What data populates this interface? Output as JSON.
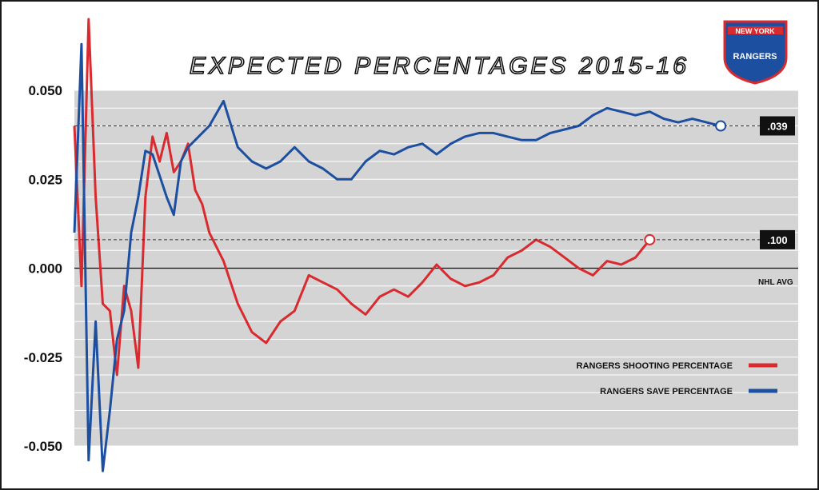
{
  "chart_data": {
    "type": "line",
    "title": "EXPECTED PERCENTAGES 2015-16",
    "xlabel": "",
    "ylabel": "",
    "ylim": [
      -0.05,
      0.05
    ],
    "yticks": [
      "0.050",
      "0.025",
      "0.000",
      "-0.025",
      "-0.050"
    ],
    "grid": true,
    "legend_position": "bottom-right",
    "baseline_label": "NHL AVG",
    "series": [
      {
        "name": "RANGERS SHOOTING PERCENTAGE",
        "color": "#d92b2f",
        "x": [
          1,
          2,
          3,
          4,
          5,
          6,
          7,
          8,
          9,
          10,
          11,
          12,
          13,
          14,
          15,
          16,
          17,
          18,
          19,
          20,
          22,
          24,
          26,
          28,
          30,
          32,
          34,
          36,
          38,
          40,
          42,
          44,
          46,
          48,
          50,
          52,
          54,
          56,
          58,
          60,
          62,
          64,
          66,
          68,
          70,
          72,
          74,
          76,
          78,
          80,
          82
        ],
        "values": [
          0.04,
          -0.005,
          0.07,
          0.02,
          -0.01,
          -0.012,
          -0.03,
          -0.005,
          -0.012,
          -0.028,
          0.02,
          0.037,
          0.03,
          0.038,
          0.027,
          0.03,
          0.035,
          0.022,
          0.018,
          0.01,
          0.002,
          -0.01,
          -0.018,
          -0.021,
          -0.015,
          -0.012,
          -0.002,
          -0.004,
          -0.006,
          -0.01,
          -0.013,
          -0.008,
          -0.006,
          -0.008,
          -0.004,
          0.001,
          -0.003,
          -0.005,
          -0.004,
          -0.002,
          0.003,
          0.005,
          0.008,
          0.006,
          0.003,
          0,
          -0.002,
          0.002,
          0.001,
          0.003,
          0.008
        ],
        "end_label": ".100"
      },
      {
        "name": "RANGERS SAVE PERCENTAGE",
        "color": "#1d4fa0",
        "x": [
          1,
          2,
          3,
          4,
          5,
          6,
          7,
          8,
          9,
          10,
          11,
          12,
          13,
          14,
          15,
          16,
          17,
          18,
          19,
          20,
          22,
          24,
          26,
          28,
          30,
          32,
          34,
          36,
          38,
          40,
          42,
          44,
          46,
          48,
          50,
          52,
          54,
          56,
          58,
          60,
          62,
          64,
          66,
          68,
          70,
          72,
          74,
          76,
          78,
          80,
          82,
          84,
          86,
          88,
          90,
          92
        ],
        "values": [
          0.01,
          0.063,
          -0.054,
          -0.015,
          -0.057,
          -0.04,
          -0.02,
          -0.012,
          0.01,
          0.02,
          0.033,
          0.032,
          0.026,
          0.02,
          0.015,
          0.03,
          0.034,
          0.036,
          0.038,
          0.04,
          0.047,
          0.034,
          0.03,
          0.028,
          0.03,
          0.034,
          0.03,
          0.028,
          0.025,
          0.025,
          0.03,
          0.033,
          0.032,
          0.034,
          0.035,
          0.032,
          0.035,
          0.037,
          0.038,
          0.038,
          0.037,
          0.036,
          0.036,
          0.038,
          0.039,
          0.04,
          0.043,
          0.045,
          0.044,
          0.043,
          0.044,
          0.042,
          0.041,
          0.042,
          0.041,
          0.04
        ],
        "end_label": ".039"
      }
    ]
  }
}
